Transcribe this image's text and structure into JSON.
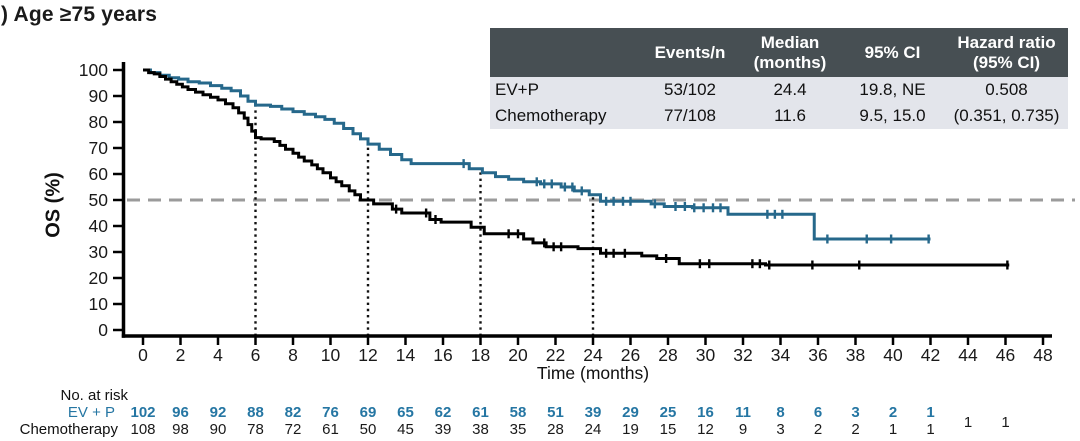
{
  "title": ") Age ≥75 years",
  "colors": {
    "evp_curve": "#26688b",
    "evp_text": "#2576a3",
    "chemo_curve": "#000000",
    "text": "#1a1a1a",
    "median_dash_line": "#9b9b9b",
    "dotted_ref_line": "#111111",
    "table_header_bg": "#474f53",
    "table_header_text": "#ffffff",
    "table_row_bg": "#e3e5eb"
  },
  "table": {
    "headers": [
      "",
      "Events/n",
      "Median\n(months)",
      "95% CI",
      "Hazard ratio\n(95% CI)"
    ],
    "rows": [
      {
        "name": "EV+P",
        "events_n": "53/102",
        "median_months": "24.4",
        "ci_95": "19.8, NE",
        "hazard_ratio": "0.508"
      },
      {
        "name": "Chemotherapy",
        "events_n": "77/108",
        "median_months": "11.6",
        "ci_95": "9.5, 15.0",
        "hazard_ratio": "(0.351, 0.735)"
      }
    ]
  },
  "chart_data": {
    "type": "line",
    "subtype": "kaplan-meier-step",
    "xlabel": "Time (months)",
    "ylabel": "OS (%)",
    "xlim": [
      0,
      48
    ],
    "xtick_step": 2,
    "ylim": [
      0,
      100
    ],
    "ytick_step": 10,
    "grid": false,
    "reference_lines": {
      "horizontal_dashed_pct": 50,
      "vertical_dotted_months": [
        6,
        12,
        18,
        24
      ]
    },
    "series": [
      {
        "name": "EV+P",
        "color": "#26688b",
        "steps": [
          [
            0,
            100
          ],
          [
            0.4,
            99
          ],
          [
            0.9,
            98
          ],
          [
            1.4,
            97
          ],
          [
            1.9,
            96.5
          ],
          [
            2.4,
            95.5
          ],
          [
            3.0,
            95
          ],
          [
            3.6,
            94
          ],
          [
            4.2,
            93
          ],
          [
            4.7,
            92
          ],
          [
            5.2,
            90
          ],
          [
            5.6,
            88
          ],
          [
            6.0,
            86.5
          ],
          [
            6.8,
            86
          ],
          [
            7.4,
            85
          ],
          [
            8.0,
            84
          ],
          [
            8.6,
            83
          ],
          [
            9.2,
            82
          ],
          [
            9.7,
            81
          ],
          [
            10.2,
            79.5
          ],
          [
            10.7,
            77.5
          ],
          [
            11.2,
            75.5
          ],
          [
            11.6,
            73.5
          ],
          [
            12.0,
            71.5
          ],
          [
            12.6,
            69.5
          ],
          [
            13.2,
            67.5
          ],
          [
            13.8,
            65.5
          ],
          [
            14.3,
            64
          ],
          [
            17.4,
            62
          ],
          [
            18.1,
            60.5
          ],
          [
            18.8,
            59
          ],
          [
            19.5,
            58
          ],
          [
            20.3,
            57
          ],
          [
            21.2,
            56.2
          ],
          [
            22.3,
            55
          ],
          [
            23.0,
            53.5
          ],
          [
            23.8,
            52
          ],
          [
            24.4,
            49.5
          ],
          [
            27.1,
            48.5
          ],
          [
            27.8,
            47.5
          ],
          [
            29.3,
            47
          ],
          [
            31.2,
            44.5
          ],
          [
            35.8,
            35
          ],
          [
            42.0,
            35
          ]
        ],
        "censor_months": [
          17.1,
          21.0,
          21.4,
          21.8,
          22.5,
          22.9,
          23.4,
          24.7,
          25.1,
          25.6,
          26.0,
          27.3,
          28.4,
          28.9,
          29.4,
          29.9,
          30.4,
          30.8,
          33.3,
          33.7,
          34.1,
          36.5,
          38.6,
          39.9,
          41.9
        ]
      },
      {
        "name": "Chemotherapy",
        "color": "#000000",
        "steps": [
          [
            0,
            100
          ],
          [
            0.3,
            99
          ],
          [
            0.6,
            98.5
          ],
          [
            0.9,
            97.5
          ],
          [
            1.2,
            96.5
          ],
          [
            1.5,
            95.5
          ],
          [
            1.8,
            94.5
          ],
          [
            2.1,
            93.5
          ],
          [
            2.4,
            92.5
          ],
          [
            2.8,
            91.5
          ],
          [
            3.2,
            90.5
          ],
          [
            3.6,
            89.5
          ],
          [
            4.0,
            88.5
          ],
          [
            4.4,
            87
          ],
          [
            4.8,
            85.5
          ],
          [
            5.1,
            83.5
          ],
          [
            5.4,
            81.5
          ],
          [
            5.6,
            79
          ],
          [
            5.8,
            76.5
          ],
          [
            6.0,
            74
          ],
          [
            6.3,
            73.5
          ],
          [
            7.0,
            72.5
          ],
          [
            7.3,
            71
          ],
          [
            7.6,
            69.5
          ],
          [
            8.0,
            68
          ],
          [
            8.3,
            66.5
          ],
          [
            8.6,
            65
          ],
          [
            9.0,
            63.5
          ],
          [
            9.3,
            62
          ],
          [
            9.6,
            60.5
          ],
          [
            10.0,
            58.5
          ],
          [
            10.3,
            57
          ],
          [
            10.6,
            55.5
          ],
          [
            11.0,
            53.5
          ],
          [
            11.3,
            52
          ],
          [
            11.6,
            50
          ],
          [
            12.3,
            48.5
          ],
          [
            13.3,
            46.5
          ],
          [
            13.8,
            45
          ],
          [
            15.3,
            42.5
          ],
          [
            15.9,
            41.5
          ],
          [
            17.5,
            39.5
          ],
          [
            18.2,
            37
          ],
          [
            20.3,
            35
          ],
          [
            20.8,
            33.5
          ],
          [
            21.5,
            32
          ],
          [
            23.2,
            31.3
          ],
          [
            24.4,
            29.5
          ],
          [
            26.6,
            28.5
          ],
          [
            27.4,
            27.5
          ],
          [
            28.6,
            25.5
          ],
          [
            33.2,
            25
          ],
          [
            46.2,
            25
          ]
        ],
        "censor_months": [
          13.5,
          15.1,
          15.6,
          19.5,
          20.0,
          21.4,
          21.9,
          22.3,
          24.7,
          25.1,
          25.7,
          27.9,
          29.7,
          30.2,
          32.5,
          32.9,
          33.4,
          35.7,
          38.2,
          46.1
        ]
      }
    ],
    "medians": {
      "EV+P": 24.4,
      "Chemotherapy": 11.6
    }
  },
  "at_risk": {
    "label": "No. at risk",
    "start_month": 0,
    "month_interval": 2,
    "rows": [
      {
        "name": "EV + P",
        "color": "#2576a3",
        "bold": true,
        "values": [
          102,
          96,
          92,
          88,
          82,
          76,
          69,
          65,
          62,
          61,
          58,
          51,
          39,
          29,
          25,
          16,
          11,
          8,
          6,
          3,
          2,
          1
        ],
        "raised_indices": []
      },
      {
        "name": "Chemotherapy",
        "color": "#1a1a1a",
        "bold": false,
        "values": [
          108,
          98,
          90,
          78,
          72,
          61,
          50,
          45,
          39,
          38,
          35,
          28,
          24,
          19,
          15,
          12,
          9,
          3,
          2,
          2,
          1,
          1,
          1,
          1
        ],
        "raised_indices": [
          22,
          23
        ]
      }
    ]
  }
}
